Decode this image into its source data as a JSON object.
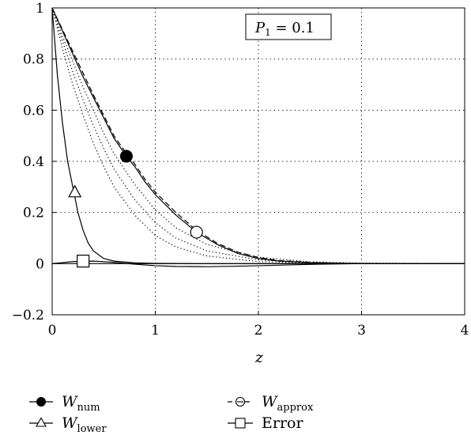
{
  "chart_data": {
    "type": "line",
    "title": "",
    "xlabel": "z",
    "ylabel": "",
    "xlim": [
      0,
      4
    ],
    "ylim": [
      -0.2,
      1
    ],
    "x_ticks": [
      "0",
      "1",
      "2",
      "3",
      "4"
    ],
    "y_ticks": [
      "-0.2",
      "0",
      "0.2",
      "0.4",
      "0.6",
      "0.8",
      "1"
    ],
    "grid": true,
    "annotation": {
      "symbol": "P",
      "subscript": "1",
      "text": " = 0.1",
      "placement": "top-right"
    },
    "legend_placement": "bottom, below plot",
    "series": [
      {
        "name": "W_num",
        "label_main": "W",
        "label_sub": "num",
        "style": "solid",
        "marker": "filled-circle",
        "marker_at": [
          0.72,
          0.42
        ],
        "x": [
          0,
          0.1,
          0.2,
          0.3,
          0.4,
          0.5,
          0.6,
          0.72,
          0.8,
          0.9,
          1.0,
          1.2,
          1.4,
          1.6,
          1.8,
          2.0,
          2.2,
          2.5,
          2.8,
          3.0,
          3.5,
          4.0
        ],
        "values": [
          1.0,
          0.91,
          0.82,
          0.73,
          0.65,
          0.57,
          0.49,
          0.42,
          0.38,
          0.32,
          0.27,
          0.19,
          0.123,
          0.075,
          0.04,
          0.02,
          0.01,
          0.004,
          0.001,
          0.0,
          0.0,
          0.0
        ]
      },
      {
        "name": "W_approx",
        "label_main": "W",
        "label_sub": "approx",
        "style": "dashed",
        "marker": "circle-with-dash",
        "marker_at": [
          1.4,
          0.123
        ],
        "x": [
          0,
          0.1,
          0.2,
          0.3,
          0.4,
          0.5,
          0.6,
          0.72,
          0.8,
          0.9,
          1.0,
          1.2,
          1.4,
          1.6,
          1.8,
          2.0,
          2.2,
          2.5,
          2.8,
          3.0,
          3.5,
          4.0
        ],
        "values": [
          1.0,
          0.915,
          0.83,
          0.745,
          0.66,
          0.58,
          0.5,
          0.43,
          0.39,
          0.33,
          0.28,
          0.2,
          0.13,
          0.08,
          0.045,
          0.024,
          0.012,
          0.005,
          0.0015,
          0.0005,
          0.0,
          0.0
        ]
      },
      {
        "name": "W_lower",
        "label_main": "W",
        "label_sub": "lower",
        "style": "solid",
        "marker": "open-triangle",
        "marker_at": [
          0.22,
          0.28
        ],
        "x": [
          0,
          0.05,
          0.1,
          0.15,
          0.2,
          0.25,
          0.3,
          0.35,
          0.4,
          0.5,
          0.6,
          0.8,
          1.0,
          1.5,
          2.0,
          3.0,
          4.0
        ],
        "values": [
          1.0,
          0.74,
          0.55,
          0.4,
          0.3,
          0.2,
          0.13,
          0.08,
          0.05,
          0.02,
          0.01,
          0.003,
          0.001,
          0.0,
          0.0,
          0.0,
          0.0
        ]
      },
      {
        "name": "Error",
        "label_main": "Error",
        "label_sub": "",
        "style": "solid",
        "marker": "open-square",
        "marker_at": [
          0.3,
          0.01
        ],
        "x": [
          0,
          0.2,
          0.4,
          0.6,
          0.8,
          1.0,
          1.2,
          1.5,
          1.8,
          2.0,
          2.3,
          2.6,
          3.0,
          3.5,
          4.0
        ],
        "values": [
          0.0,
          0.008,
          0.01,
          0.005,
          -0.002,
          -0.008,
          -0.011,
          -0.012,
          -0.01,
          -0.008,
          -0.005,
          -0.002,
          0.0,
          0.0,
          0.0
        ]
      },
      {
        "style": "dotted",
        "x": [
          0,
          0.1,
          0.2,
          0.3,
          0.4,
          0.5,
          0.6,
          0.8,
          1.0,
          1.2,
          1.5,
          2.0,
          2.5,
          3.0,
          4.0
        ],
        "values": [
          1.0,
          0.84,
          0.7,
          0.58,
          0.47,
          0.38,
          0.3,
          0.19,
          0.11,
          0.065,
          0.03,
          0.008,
          0.002,
          0.0,
          0.0
        ]
      },
      {
        "style": "dotted",
        "x": [
          0,
          0.1,
          0.2,
          0.3,
          0.4,
          0.5,
          0.6,
          0.8,
          1.0,
          1.2,
          1.5,
          2.0,
          2.5,
          3.0,
          4.0
        ],
        "values": [
          1.0,
          0.87,
          0.75,
          0.64,
          0.54,
          0.45,
          0.37,
          0.25,
          0.16,
          0.1,
          0.05,
          0.015,
          0.004,
          0.001,
          0.0
        ]
      },
      {
        "style": "dotted",
        "x": [
          0,
          0.1,
          0.2,
          0.3,
          0.4,
          0.5,
          0.6,
          0.8,
          1.0,
          1.2,
          1.5,
          2.0,
          2.5,
          3.0,
          4.0
        ],
        "values": [
          1.0,
          0.89,
          0.79,
          0.69,
          0.6,
          0.51,
          0.43,
          0.31,
          0.21,
          0.14,
          0.075,
          0.025,
          0.007,
          0.002,
          0.0
        ]
      }
    ]
  }
}
